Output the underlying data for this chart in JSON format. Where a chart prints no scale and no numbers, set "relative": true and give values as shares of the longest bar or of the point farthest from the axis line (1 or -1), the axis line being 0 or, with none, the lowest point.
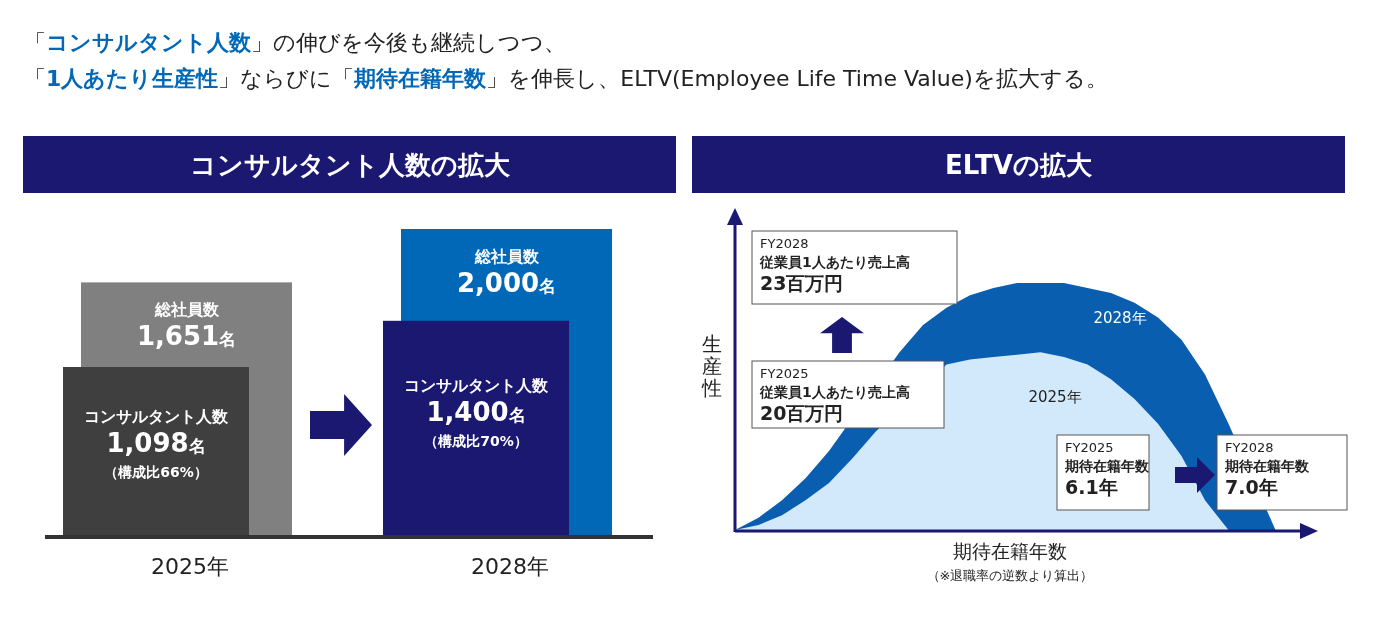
{
  "chart_data": [
    {
      "type": "other",
      "annotations": [
        "「コンサルタント人数」の伸びを今後も継続しつつ、",
        "「1人あたり生産性」ならびに「期待在籍年数」を伸長し、ELTV(Employee Life Time Value)を拡大する。"
      ]
    },
    {
      "type": "bar",
      "title": "コンサルタント人数の拡大",
      "categories": [
        "2025年",
        "2028年"
      ],
      "series": [
        {
          "name": "総社員数",
          "colors": [
            "#808080",
            "#0068b7"
          ],
          "values": [
            1651,
            2000
          ],
          "value_labels": [
            "1,651名",
            "2,000名"
          ]
        },
        {
          "name": "コンサルタント人数",
          "colors": [
            "#3f3f3f",
            "#1a1870"
          ],
          "values": [
            1098,
            1400
          ],
          "value_labels": [
            "1,098名",
            "1,400名"
          ]
        }
      ],
      "annotations": [
        "（構成比66%）",
        "（構成比70%）"
      ]
    },
    {
      "type": "area",
      "title": "ELTVの拡大",
      "relative": true,
      "xlabel": "期待在籍年数",
      "ylabel": "生産性",
      "categories": [
        null,
        null,
        null,
        null,
        null,
        null,
        null,
        null,
        null,
        null,
        null,
        null,
        null,
        null,
        null,
        null,
        null,
        null,
        null,
        null,
        null,
        null,
        null,
        null,
        null
      ],
      "series": [
        {
          "name": "2028年",
          "color": "#0a5eb0",
          "values": [
            0,
            0.05,
            0.12,
            0.21,
            0.32,
            null,
            null,
            0.72,
            0.83,
            0.9,
            0.95,
            0.98,
            1.0,
            1.0,
            1.0,
            0.98,
            0.96,
            0.92,
            0.86,
            0.77,
            0.63,
            0.43,
            null,
            0,
            0
          ]
        },
        {
          "name": "2025年",
          "color": "#d2e9fb",
          "values": [
            0,
            0.02,
            0.06,
            0.12,
            0.19,
            0.29,
            0.4,
            null,
            null,
            0.67,
            0.69,
            0.7,
            0.71,
            0.72,
            0.7,
            0.67,
            0.61,
            0.53,
            0.43,
            0.3,
            0.12,
            0,
            0,
            0,
            0
          ]
        }
      ],
      "annotations": [
        "（※退職率の逆数より算出）",
        "FY2028\n従業員1人あたり売上高\n23百万円",
        "FY2025\n従業員1人あたり売上高\n20百万円",
        "FY2025\n期待在籍年数\n6.1年",
        "FY2028\n期待在籍年数\n7.0年"
      ]
    }
  ]
}
